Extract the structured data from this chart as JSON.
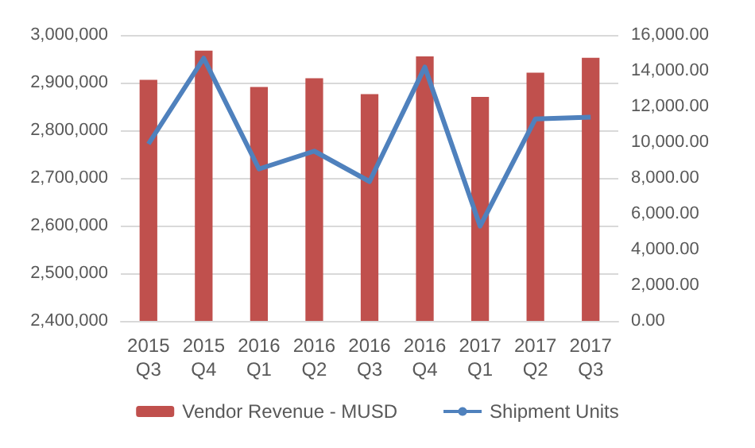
{
  "chart_data": {
    "type": "bar",
    "categories": [
      "2015\nQ3",
      "2015\nQ4",
      "2016\nQ1",
      "2016\nQ2",
      "2016\nQ3",
      "2016\nQ4",
      "2017\nQ1",
      "2017\nQ2",
      "2017\nQ3"
    ],
    "series": [
      {
        "name": "Vendor Revenue - MUSD",
        "color": "#c0504d",
        "values": [
          2906000,
          2967000,
          2891000,
          2909000,
          2876000,
          2955000,
          2870000,
          2921000,
          2952000
        ]
      },
      {
        "name": "Shipment Units",
        "type": "line",
        "axis": "y2",
        "color": "#4f81bd",
        "values": [
          9900,
          14700,
          8500,
          9500,
          7800,
          14200,
          5300,
          11300,
          11400
        ]
      }
    ],
    "ylim": [
      2400000,
      3000000
    ],
    "yticks": [
      {
        "value": 2400000,
        "label": "2,400,000"
      },
      {
        "value": 2500000,
        "label": "2,500,000"
      },
      {
        "value": 2600000,
        "label": "2,600,000"
      },
      {
        "value": 2700000,
        "label": "2,700,000"
      },
      {
        "value": 2800000,
        "label": "2,800,000"
      },
      {
        "value": 2900000,
        "label": "2,900,000"
      },
      {
        "value": 3000000,
        "label": "3,000,000"
      }
    ],
    "y2lim": [
      0,
      16000
    ],
    "y2ticks": [
      {
        "value": 0,
        "label": "0.00"
      },
      {
        "value": 2000,
        "label": "2,000.00"
      },
      {
        "value": 4000,
        "label": "4,000.00"
      },
      {
        "value": 6000,
        "label": "6,000.00"
      },
      {
        "value": 8000,
        "label": "8,000.00"
      },
      {
        "value": 10000,
        "label": "10,000.00"
      },
      {
        "value": 12000,
        "label": "12,000.00"
      },
      {
        "value": 14000,
        "label": "14,000.00"
      },
      {
        "value": 16000,
        "label": "16,000.00"
      }
    ],
    "grid": "y",
    "legend": "bottom",
    "marker": "none"
  }
}
